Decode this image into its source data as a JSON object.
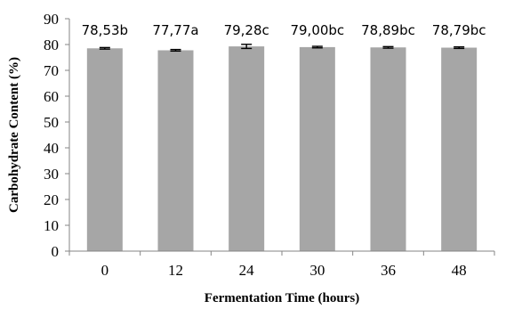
{
  "chart_data": {
    "type": "bar",
    "categories": [
      "0",
      "12",
      "24",
      "30",
      "36",
      "48"
    ],
    "values": [
      78.53,
      77.77,
      79.28,
      79.0,
      78.89,
      78.79
    ],
    "errors": [
      0.3,
      0.3,
      0.8,
      0.3,
      0.3,
      0.3
    ],
    "data_labels": [
      "78,53b",
      "77,77a",
      "79,28c",
      "79,00bc",
      "78,89bc",
      "78,79bc"
    ],
    "xlabel": "Fermentation Time (hours)",
    "ylabel": "Carbohydrate Content (%)",
    "ylim": [
      0,
      90
    ],
    "yticks": [
      0,
      10,
      20,
      30,
      40,
      50,
      60,
      70,
      80,
      90
    ],
    "grid": false,
    "legend": "none",
    "colors": {
      "bar": "#a6a6a6",
      "axis": "#868686",
      "error_bar": "#000000"
    }
  }
}
